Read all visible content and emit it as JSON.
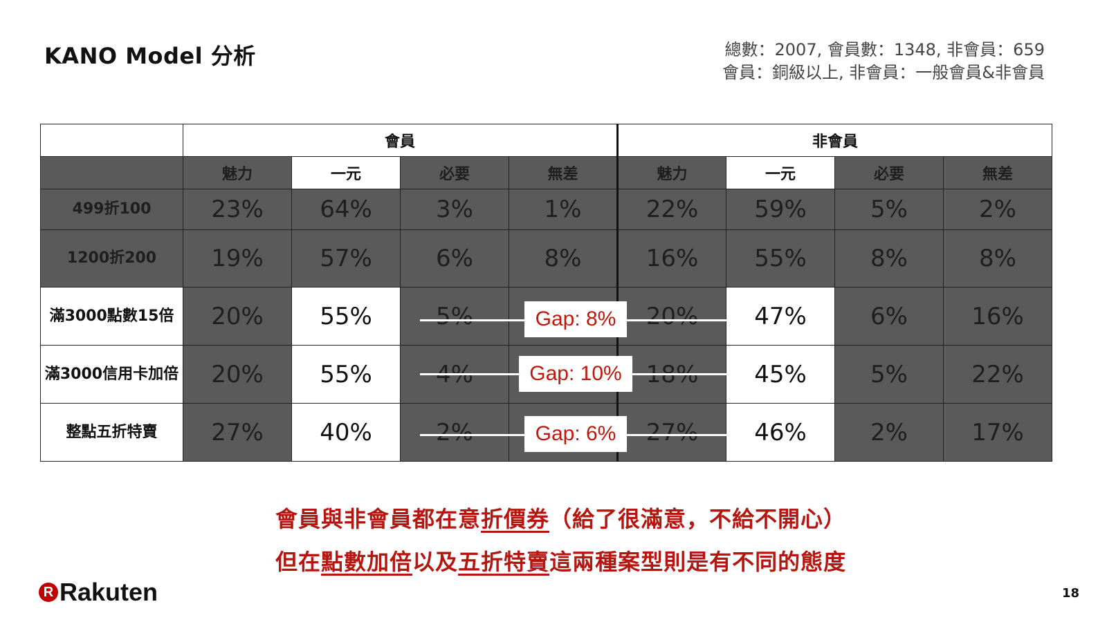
{
  "title": "KANO Model 分析",
  "meta": {
    "line1": "總數：2007, 會員數：1348, 非會員：659",
    "line2": "會員：銅級以上, 非會員：一般會員&非會員"
  },
  "table": {
    "groups": [
      "會員",
      "非會員"
    ],
    "subheaders": [
      "魅力",
      "一元",
      "必要",
      "無差",
      "魅力",
      "一元",
      "必要",
      "無差"
    ],
    "rows": [
      {
        "label": "499折100",
        "values": [
          "23%",
          "64%",
          "3%",
          "1%",
          "22%",
          "59%",
          "5%",
          "2%"
        ]
      },
      {
        "label": "1200折200",
        "values": [
          "19%",
          "57%",
          "6%",
          "8%",
          "16%",
          "55%",
          "8%",
          "8%"
        ]
      },
      {
        "label": "滿3000點數15倍",
        "values": [
          "20%",
          "55%",
          "5%",
          "",
          "20%",
          "47%",
          "6%",
          "16%"
        ]
      },
      {
        "label": "滿3000信用卡加倍",
        "values": [
          "20%",
          "55%",
          "4%",
          "",
          "18%",
          "45%",
          "5%",
          "22%"
        ]
      },
      {
        "label": "整點五折特賣",
        "values": [
          "27%",
          "40%",
          "2%",
          "",
          "27%",
          "46%",
          "2%",
          "17%"
        ]
      }
    ]
  },
  "gaps": [
    "Gap: 8%",
    "Gap: 10%",
    "Gap: 6%"
  ],
  "conclusion": {
    "line1_a": "會員與非會員都在意",
    "line1_u": "折價券",
    "line1_b": "（給了很滿意，不給不開心）",
    "line2_a": "但在",
    "line2_u1": "點數加倍",
    "line2_b": "以及",
    "line2_u2": "五折特賣",
    "line2_c": "這兩種案型則是有不同的態度"
  },
  "brand": {
    "icon_letter": "R",
    "name": "Rakuten"
  },
  "page_number": "18",
  "colors": {
    "accent_red": "#b5160f",
    "dark_cell": "#5a5a5a"
  }
}
